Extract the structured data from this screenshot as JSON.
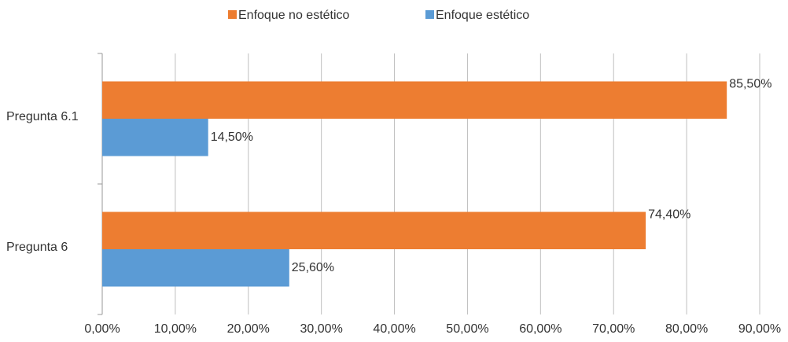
{
  "chart_data": {
    "type": "hbar",
    "categories": [
      "Pregunta 6.1",
      "Pregunta 6"
    ],
    "series": [
      {
        "name": "Enfoque no estético",
        "color": "#ED7D31",
        "values": [
          85.5,
          74.4
        ],
        "value_labels": [
          "85,50%",
          "74,40%"
        ]
      },
      {
        "name": "Enfoque estético",
        "color": "#5B9BD5",
        "values": [
          14.5,
          25.6
        ],
        "value_labels": [
          "14,50%",
          "25,60%"
        ]
      }
    ],
    "xlim": [
      0,
      90
    ],
    "xticks": [
      {
        "value": 0,
        "label": "0,00%"
      },
      {
        "value": 10,
        "label": "10,00%"
      },
      {
        "value": 20,
        "label": "20,00%"
      },
      {
        "value": 30,
        "label": "30,00%"
      },
      {
        "value": 40,
        "label": "40,00%"
      },
      {
        "value": 50,
        "label": "50,00%"
      },
      {
        "value": 60,
        "label": "60,00%"
      },
      {
        "value": 70,
        "label": "70,00%"
      },
      {
        "value": 80,
        "label": "80,00%"
      },
      {
        "value": 90,
        "label": "90,00%"
      }
    ],
    "grid": true,
    "legend": "top"
  }
}
